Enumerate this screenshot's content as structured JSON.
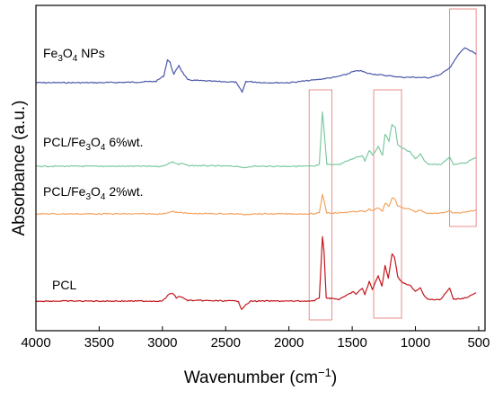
{
  "chart_data": {
    "type": "line",
    "xlabel_main": "Wavenumber (cm",
    "xlabel_sup": "−1",
    "xlabel_end": ")",
    "ylabel": "Absorbance (a.u.)",
    "xlim": [
      4000,
      450
    ],
    "x_reversed": true,
    "y_ticks_shown": false,
    "x_ticks": [
      4000,
      3500,
      3000,
      2500,
      2000,
      1500,
      1000,
      500
    ],
    "grid": false,
    "series": [
      {
        "name_main": "Fe",
        "name_sub": "3",
        "name_mid": "O",
        "name_sub2": "4",
        "name_tail": " NPs",
        "color": "#4b56a8",
        "points": [
          [
            4000,
            0.0
          ],
          [
            3500,
            0.0
          ],
          [
            3200,
            0.02
          ],
          [
            3050,
            0.05
          ],
          [
            2990,
            0.25
          ],
          [
            2960,
            0.85
          ],
          [
            2940,
            0.75
          ],
          [
            2910,
            0.3
          ],
          [
            2870,
            0.65
          ],
          [
            2850,
            0.45
          ],
          [
            2800,
            0.1
          ],
          [
            2600,
            0.05
          ],
          [
            2420,
            0.02
          ],
          [
            2370,
            -0.35
          ],
          [
            2340,
            0.05
          ],
          [
            2200,
            0.0
          ],
          [
            2000,
            0.0
          ],
          [
            1900,
            0.05
          ],
          [
            1800,
            0.1
          ],
          [
            1640,
            0.2
          ],
          [
            1550,
            0.3
          ],
          [
            1500,
            0.4
          ],
          [
            1440,
            0.45
          ],
          [
            1380,
            0.35
          ],
          [
            1300,
            0.3
          ],
          [
            1100,
            0.2
          ],
          [
            1000,
            0.2
          ],
          [
            900,
            0.18
          ],
          [
            800,
            0.3
          ],
          [
            720,
            0.6
          ],
          [
            680,
            0.9
          ],
          [
            650,
            1.1
          ],
          [
            610,
            1.3
          ],
          [
            580,
            1.2
          ],
          [
            550,
            1.15
          ],
          [
            520,
            1.05
          ]
        ]
      },
      {
        "name_main": "PCL/Fe",
        "name_sub": "3",
        "name_mid": "O",
        "name_sub2": "4",
        "name_tail": " 6%wt.",
        "color": "#7dc9a0",
        "points": [
          [
            4000,
            0.0
          ],
          [
            3000,
            0.0
          ],
          [
            2950,
            0.08
          ],
          [
            2920,
            0.12
          ],
          [
            2870,
            0.05
          ],
          [
            2850,
            0.08
          ],
          [
            2800,
            0.02
          ],
          [
            2400,
            0.0
          ],
          [
            2360,
            -0.05
          ],
          [
            2300,
            0.0
          ],
          [
            1800,
            0.0
          ],
          [
            1760,
            0.05
          ],
          [
            1735,
            1.5
          ],
          [
            1720,
            0.9
          ],
          [
            1700,
            0.05
          ],
          [
            1600,
            0.05
          ],
          [
            1470,
            0.25
          ],
          [
            1420,
            0.3
          ],
          [
            1400,
            0.15
          ],
          [
            1365,
            0.45
          ],
          [
            1340,
            0.3
          ],
          [
            1295,
            0.55
          ],
          [
            1260,
            0.3
          ],
          [
            1240,
            0.9
          ],
          [
            1210,
            0.7
          ],
          [
            1185,
            1.15
          ],
          [
            1160,
            1.1
          ],
          [
            1140,
            0.6
          ],
          [
            1100,
            0.5
          ],
          [
            1045,
            0.4
          ],
          [
            1000,
            0.2
          ],
          [
            960,
            0.35
          ],
          [
            930,
            0.15
          ],
          [
            900,
            0.05
          ],
          [
            800,
            0.05
          ],
          [
            730,
            0.25
          ],
          [
            700,
            0.05
          ],
          [
            600,
            0.1
          ],
          [
            550,
            0.2
          ],
          [
            520,
            0.25
          ]
        ]
      },
      {
        "name_main": "PCL/Fe",
        "name_sub": "3",
        "name_mid": "O",
        "name_sub2": "4",
        "name_tail": " 2%wt.",
        "color": "#f4a35f",
        "points": [
          [
            4000,
            0.0
          ],
          [
            3000,
            0.0
          ],
          [
            2950,
            0.08
          ],
          [
            2920,
            0.12
          ],
          [
            2870,
            0.05
          ],
          [
            2850,
            0.08
          ],
          [
            2800,
            0.02
          ],
          [
            2400,
            0.0
          ],
          [
            2360,
            -0.04
          ],
          [
            2300,
            0.0
          ],
          [
            1800,
            0.0
          ],
          [
            1760,
            0.05
          ],
          [
            1735,
            1.0
          ],
          [
            1720,
            0.6
          ],
          [
            1700,
            0.05
          ],
          [
            1600,
            0.05
          ],
          [
            1470,
            0.12
          ],
          [
            1420,
            0.15
          ],
          [
            1400,
            0.08
          ],
          [
            1365,
            0.25
          ],
          [
            1340,
            0.15
          ],
          [
            1295,
            0.3
          ],
          [
            1260,
            0.15
          ],
          [
            1240,
            0.55
          ],
          [
            1210,
            0.4
          ],
          [
            1185,
            0.8
          ],
          [
            1160,
            0.75
          ],
          [
            1140,
            0.4
          ],
          [
            1100,
            0.3
          ],
          [
            1045,
            0.25
          ],
          [
            1000,
            0.1
          ],
          [
            960,
            0.2
          ],
          [
            930,
            0.08
          ],
          [
            900,
            0.03
          ],
          [
            800,
            0.03
          ],
          [
            730,
            0.15
          ],
          [
            700,
            0.03
          ],
          [
            600,
            0.08
          ],
          [
            550,
            0.15
          ],
          [
            520,
            0.2
          ]
        ]
      },
      {
        "name_main": "PCL",
        "name_sub": "",
        "name_mid": "",
        "name_sub2": "",
        "name_tail": "",
        "color": "#c4161c",
        "points": [
          [
            4000,
            0.0
          ],
          [
            3000,
            0.0
          ],
          [
            2950,
            0.2
          ],
          [
            2920,
            0.25
          ],
          [
            2890,
            0.1
          ],
          [
            2865,
            0.15
          ],
          [
            2800,
            0.02
          ],
          [
            2400,
            0.0
          ],
          [
            2375,
            -0.25
          ],
          [
            2350,
            -0.15
          ],
          [
            2300,
            0.0
          ],
          [
            1800,
            0.0
          ],
          [
            1760,
            0.1
          ],
          [
            1735,
            2.0
          ],
          [
            1722,
            1.5
          ],
          [
            1705,
            0.1
          ],
          [
            1600,
            0.05
          ],
          [
            1490,
            0.3
          ],
          [
            1470,
            0.2
          ],
          [
            1420,
            0.4
          ],
          [
            1400,
            0.2
          ],
          [
            1365,
            0.6
          ],
          [
            1340,
            0.35
          ],
          [
            1295,
            0.8
          ],
          [
            1265,
            0.45
          ],
          [
            1240,
            1.1
          ],
          [
            1215,
            0.7
          ],
          [
            1185,
            1.45
          ],
          [
            1165,
            1.35
          ],
          [
            1140,
            0.75
          ],
          [
            1100,
            0.55
          ],
          [
            1045,
            0.5
          ],
          [
            1000,
            0.3
          ],
          [
            960,
            0.4
          ],
          [
            930,
            0.15
          ],
          [
            900,
            0.05
          ],
          [
            800,
            0.05
          ],
          [
            730,
            0.4
          ],
          [
            700,
            0.05
          ],
          [
            600,
            0.1
          ],
          [
            550,
            0.2
          ],
          [
            520,
            0.25
          ]
        ]
      }
    ]
  }
}
